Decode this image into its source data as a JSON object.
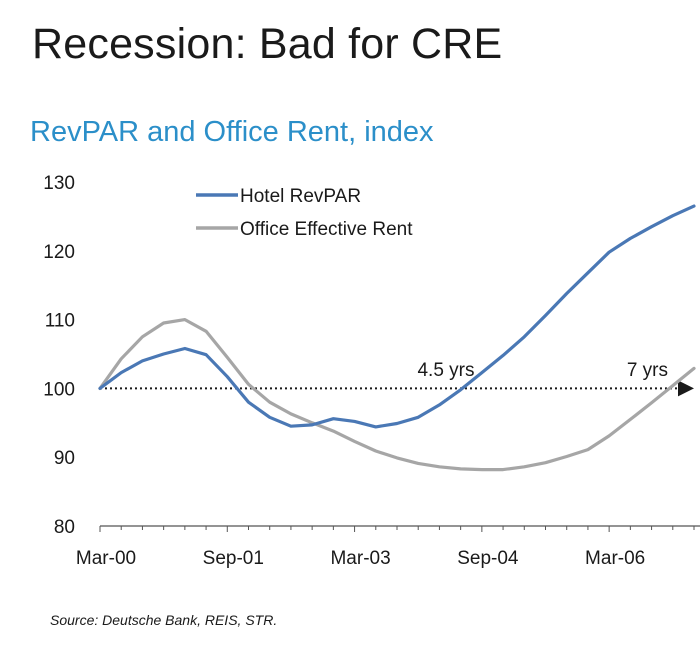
{
  "slide_title": "Recession: Bad for CRE",
  "source": "Source: Deutsche Bank, REIS, STR.",
  "colors": {
    "revpar": "#4a78b5",
    "rent": "#a6a6a6",
    "title": "#2b8fc9",
    "text": "#1a1a1a"
  },
  "chart_data": {
    "type": "line",
    "title": "RevPAR and Office Rent, index",
    "xlabel": "",
    "ylabel": "",
    "ylim": [
      80,
      130
    ],
    "yticks": [
      80,
      90,
      100,
      110,
      120,
      130
    ],
    "xticks": [
      "Mar-00",
      "Sep-01",
      "Mar-03",
      "Sep-04",
      "Mar-06"
    ],
    "legend_position": "top-left",
    "grid": false,
    "x": [
      "Mar-00",
      "Jun-00",
      "Sep-00",
      "Dec-00",
      "Mar-01",
      "Jun-01",
      "Sep-01",
      "Dec-01",
      "Mar-02",
      "Jun-02",
      "Sep-02",
      "Dec-02",
      "Mar-03",
      "Jun-03",
      "Sep-03",
      "Dec-03",
      "Mar-04",
      "Jun-04",
      "Sep-04",
      "Dec-04",
      "Mar-05",
      "Jun-05",
      "Sep-05",
      "Dec-05",
      "Mar-06",
      "Jun-06",
      "Sep-06",
      "Dec-06",
      "Mar-07"
    ],
    "series": [
      {
        "name": "Hotel RevPAR",
        "values": [
          100,
          102.3,
          104,
          105,
          105.8,
          104.9,
          101.7,
          98,
          95.8,
          94.5,
          94.7,
          95.6,
          95.2,
          94.4,
          94.9,
          95.8,
          97.6,
          99.8,
          102.3,
          104.8,
          107.5,
          110.6,
          113.8,
          116.8,
          119.8,
          121.8,
          123.5,
          125.1,
          126.5
        ]
      },
      {
        "name": "Office Effective Rent",
        "values": [
          100,
          104.3,
          107.5,
          109.5,
          110,
          108.3,
          104.5,
          100.6,
          98,
          96.3,
          95,
          93.8,
          92.3,
          90.9,
          89.9,
          89.1,
          88.6,
          88.3,
          88.2,
          88.2,
          88.6,
          89.2,
          90.1,
          91.1,
          93.1,
          95.5,
          97.9,
          100.4,
          102.9
        ]
      }
    ],
    "reference_line": {
      "y": 100,
      "style": "dotted arrow"
    },
    "annotations": [
      {
        "text": "4.5 yrs",
        "x": "Sep-04"
      },
      {
        "text": "7 yrs",
        "x": "Mar-07"
      }
    ]
  }
}
